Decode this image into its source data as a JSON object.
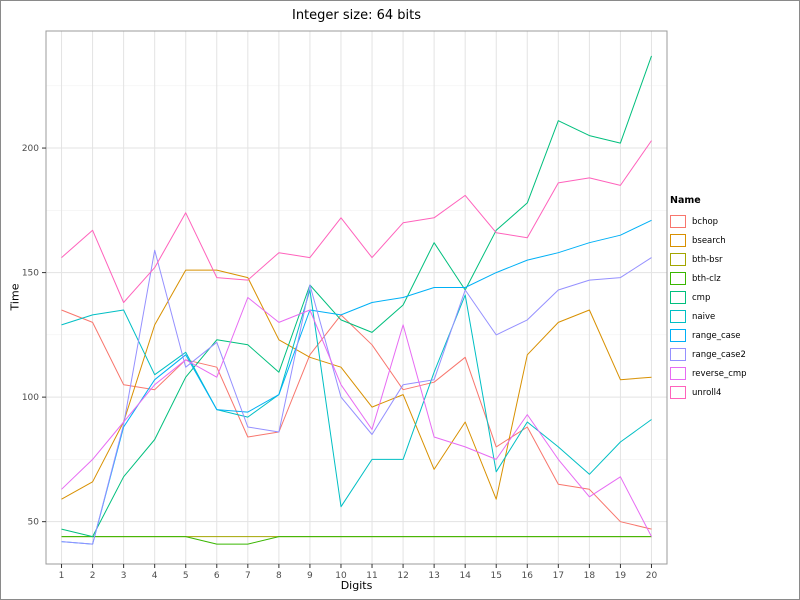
{
  "chart_data": {
    "type": "line",
    "title": "Integer size: 64 bits",
    "xlabel": "Digits",
    "ylabel": "Time",
    "legend_title": "Name",
    "legend_position": "right",
    "grid": true,
    "x": [
      1,
      2,
      3,
      4,
      5,
      6,
      7,
      8,
      9,
      10,
      11,
      12,
      13,
      14,
      15,
      16,
      17,
      18,
      19,
      20
    ],
    "xticks": [
      1,
      2,
      3,
      4,
      5,
      6,
      7,
      8,
      9,
      10,
      11,
      12,
      13,
      14,
      15,
      16,
      17,
      18,
      19,
      20
    ],
    "yticks": [
      50,
      100,
      150,
      200
    ],
    "yticks_minor": [
      75,
      125,
      175,
      225
    ],
    "xlim": [
      0.5,
      20.5
    ],
    "ylim": [
      33,
      247
    ],
    "colors": {
      "grid_major": "#e3e3e3",
      "grid_minor": "#f1f1f1",
      "panel_border": "#9b9b9b",
      "tick": "#333333",
      "tick_label": "#4d4d4d"
    },
    "series": [
      {
        "name": "bchop",
        "color": "#F8766D",
        "values": [
          135,
          130,
          105,
          103,
          115,
          112,
          84,
          86,
          117,
          133,
          121,
          103,
          106,
          116,
          80,
          88,
          65,
          63,
          50,
          47
        ]
      },
      {
        "name": "bsearch",
        "color": "#D89000",
        "values": [
          59,
          66,
          90,
          129,
          151,
          151,
          148,
          123,
          116,
          112,
          96,
          101,
          71,
          90,
          59,
          117,
          130,
          135,
          107,
          108
        ]
      },
      {
        "name": "bth-bsr",
        "color": "#A3A500",
        "values": [
          44,
          44,
          44,
          44,
          44,
          44,
          44,
          44,
          44,
          44,
          44,
          44,
          44,
          44,
          44,
          44,
          44,
          44,
          44,
          44
        ]
      },
      {
        "name": "bth-clz",
        "color": "#39B600",
        "values": [
          44,
          44,
          44,
          44,
          44,
          41,
          41,
          44,
          44,
          44,
          44,
          44,
          44,
          44,
          44,
          44,
          44,
          44,
          44,
          44
        ]
      },
      {
        "name": "cmp",
        "color": "#00BF7D",
        "values": [
          47,
          44,
          68,
          83,
          108,
          123,
          121,
          110,
          145,
          131,
          126,
          137,
          162,
          143,
          167,
          178,
          211,
          205,
          202,
          237
        ]
      },
      {
        "name": "naive",
        "color": "#00BFC4",
        "values": [
          129,
          133,
          135,
          109,
          118,
          95,
          92,
          101,
          143,
          56,
          75,
          75,
          110,
          141,
          70,
          90,
          80,
          69,
          82,
          91
        ]
      },
      {
        "name": "range_case",
        "color": "#00B0F6",
        "values": [
          42,
          41,
          88,
          107,
          117,
          95,
          94,
          101,
          135,
          133,
          138,
          140,
          144,
          144,
          150,
          155,
          158,
          162,
          165,
          171
        ]
      },
      {
        "name": "range_case2",
        "color": "#9590FF",
        "values": [
          42,
          41,
          89,
          159,
          112,
          122,
          88,
          86,
          145,
          100,
          85,
          105,
          107,
          143,
          125,
          131,
          143,
          147,
          148,
          156
        ]
      },
      {
        "name": "reverse_cmp",
        "color": "#E76BF3",
        "values": [
          63,
          75,
          90,
          105,
          115,
          108,
          140,
          130,
          135,
          105,
          87,
          129,
          84,
          80,
          75,
          93,
          75,
          60,
          68,
          44
        ]
      },
      {
        "name": "unroll4",
        "color": "#FF62BC",
        "values": [
          156,
          167,
          138,
          152,
          174,
          148,
          147,
          158,
          156,
          172,
          156,
          170,
          172,
          181,
          166,
          164,
          186,
          188,
          185,
          203
        ]
      }
    ]
  }
}
